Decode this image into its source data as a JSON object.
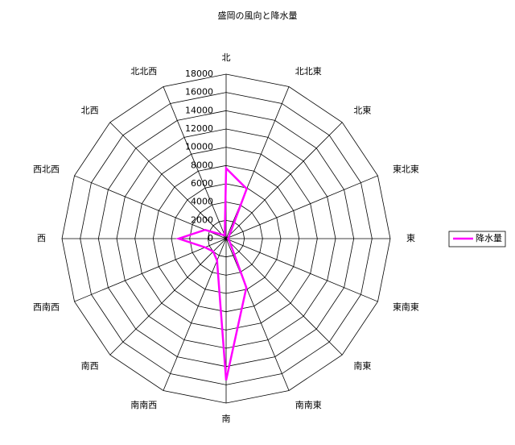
{
  "chart_data": {
    "type": "radar",
    "title": "盛岡の風向と降水量",
    "categories": [
      "北",
      "北北東",
      "北東",
      "東北東",
      "東",
      "東南東",
      "南東",
      "南南東",
      "南",
      "南南西",
      "南西",
      "西南西",
      "西",
      "西北西",
      "北西",
      "北北西"
    ],
    "series": [
      {
        "name": "降水量",
        "color": "#ff00ff",
        "values": [
          7700,
          5900,
          500,
          300,
          200,
          300,
          600,
          5800,
          15500,
          2600,
          2000,
          2500,
          5200,
          2500,
          600,
          400
        ]
      }
    ],
    "rlim": [
      0,
      18000
    ],
    "rticks": [
      0,
      2000,
      4000,
      6000,
      8000,
      10000,
      12000,
      14000,
      16000,
      18000
    ],
    "grid": true,
    "legend": "right"
  }
}
